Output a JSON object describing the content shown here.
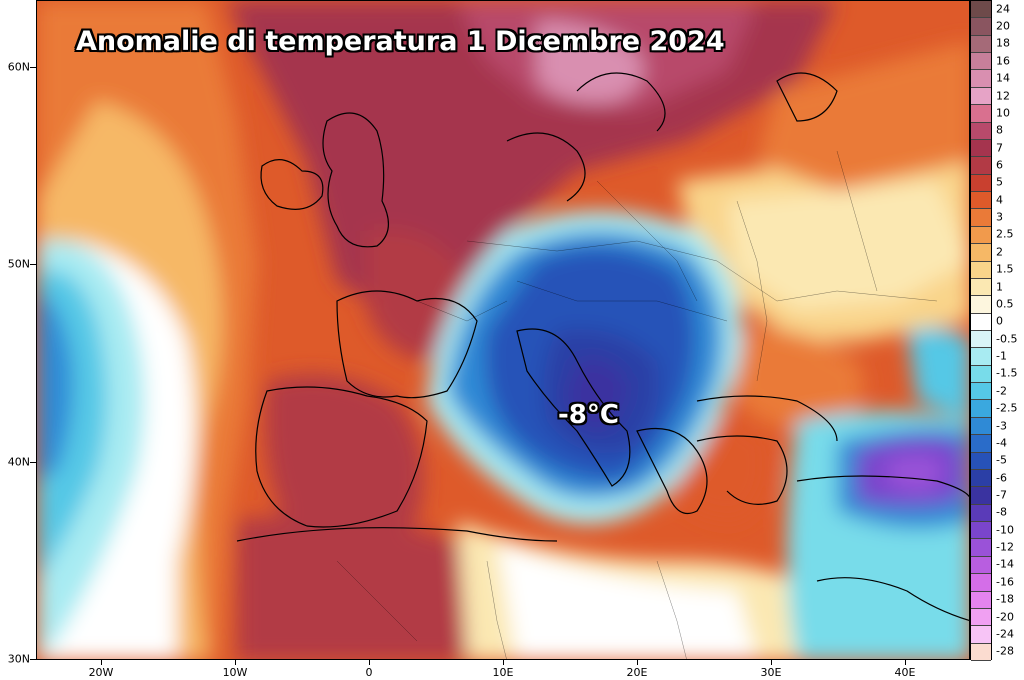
{
  "title": "Anomalie di temperatura 1 Dicembre 2024",
  "annotation": "-8°C",
  "latitude_labels": [
    "60N",
    "50N",
    "40N",
    "30N"
  ],
  "longitude_labels": [
    "20W",
    "10W",
    "0",
    "10E",
    "20E",
    "30E",
    "40E"
  ],
  "colorbar": {
    "labels": [
      "24",
      "20",
      "18",
      "16",
      "14",
      "12",
      "10",
      "8",
      "7",
      "6",
      "5",
      "4",
      "3",
      "2.5",
      "2",
      "1.5",
      "1",
      "0.5",
      "0",
      "-0.5",
      "-1",
      "-1.5",
      "-2",
      "-2.5",
      "-3",
      "-4",
      "-5",
      "-6",
      "-7",
      "-8",
      "-10",
      "-12",
      "-14",
      "-16",
      "-18",
      "-20",
      "-24",
      "-28"
    ],
    "colors": [
      "#6e4a4a",
      "#8a5560",
      "#a56a78",
      "#c77f9a",
      "#d98fb0",
      "#e6a3c6",
      "#d9708f",
      "#b84a6b",
      "#a5344e",
      "#b23a45",
      "#c9402f",
      "#de5a2a",
      "#ea7a38",
      "#f19a4c",
      "#f6b866",
      "#f9d48a",
      "#fbe8b2",
      "#fdf6de",
      "#ffffff",
      "#d9f4f7",
      "#a8ebf2",
      "#78dcea",
      "#55c8e6",
      "#3aa8df",
      "#2f8ad6",
      "#2a6cc9",
      "#2752b8",
      "#2b3fa6",
      "#3a33a0",
      "#5a3bb8",
      "#7a45cc",
      "#9a52d8",
      "#b85ee0",
      "#d46ee8",
      "#e484ee",
      "#f0a0f2",
      "#f7c4f6",
      "#fbdcd0"
    ]
  },
  "colors": {
    "warm_extreme": "#a5344e",
    "warm": "#c9402f",
    "cold_core": "#2b3fa6",
    "cold_extreme": "#7a45cc"
  }
}
